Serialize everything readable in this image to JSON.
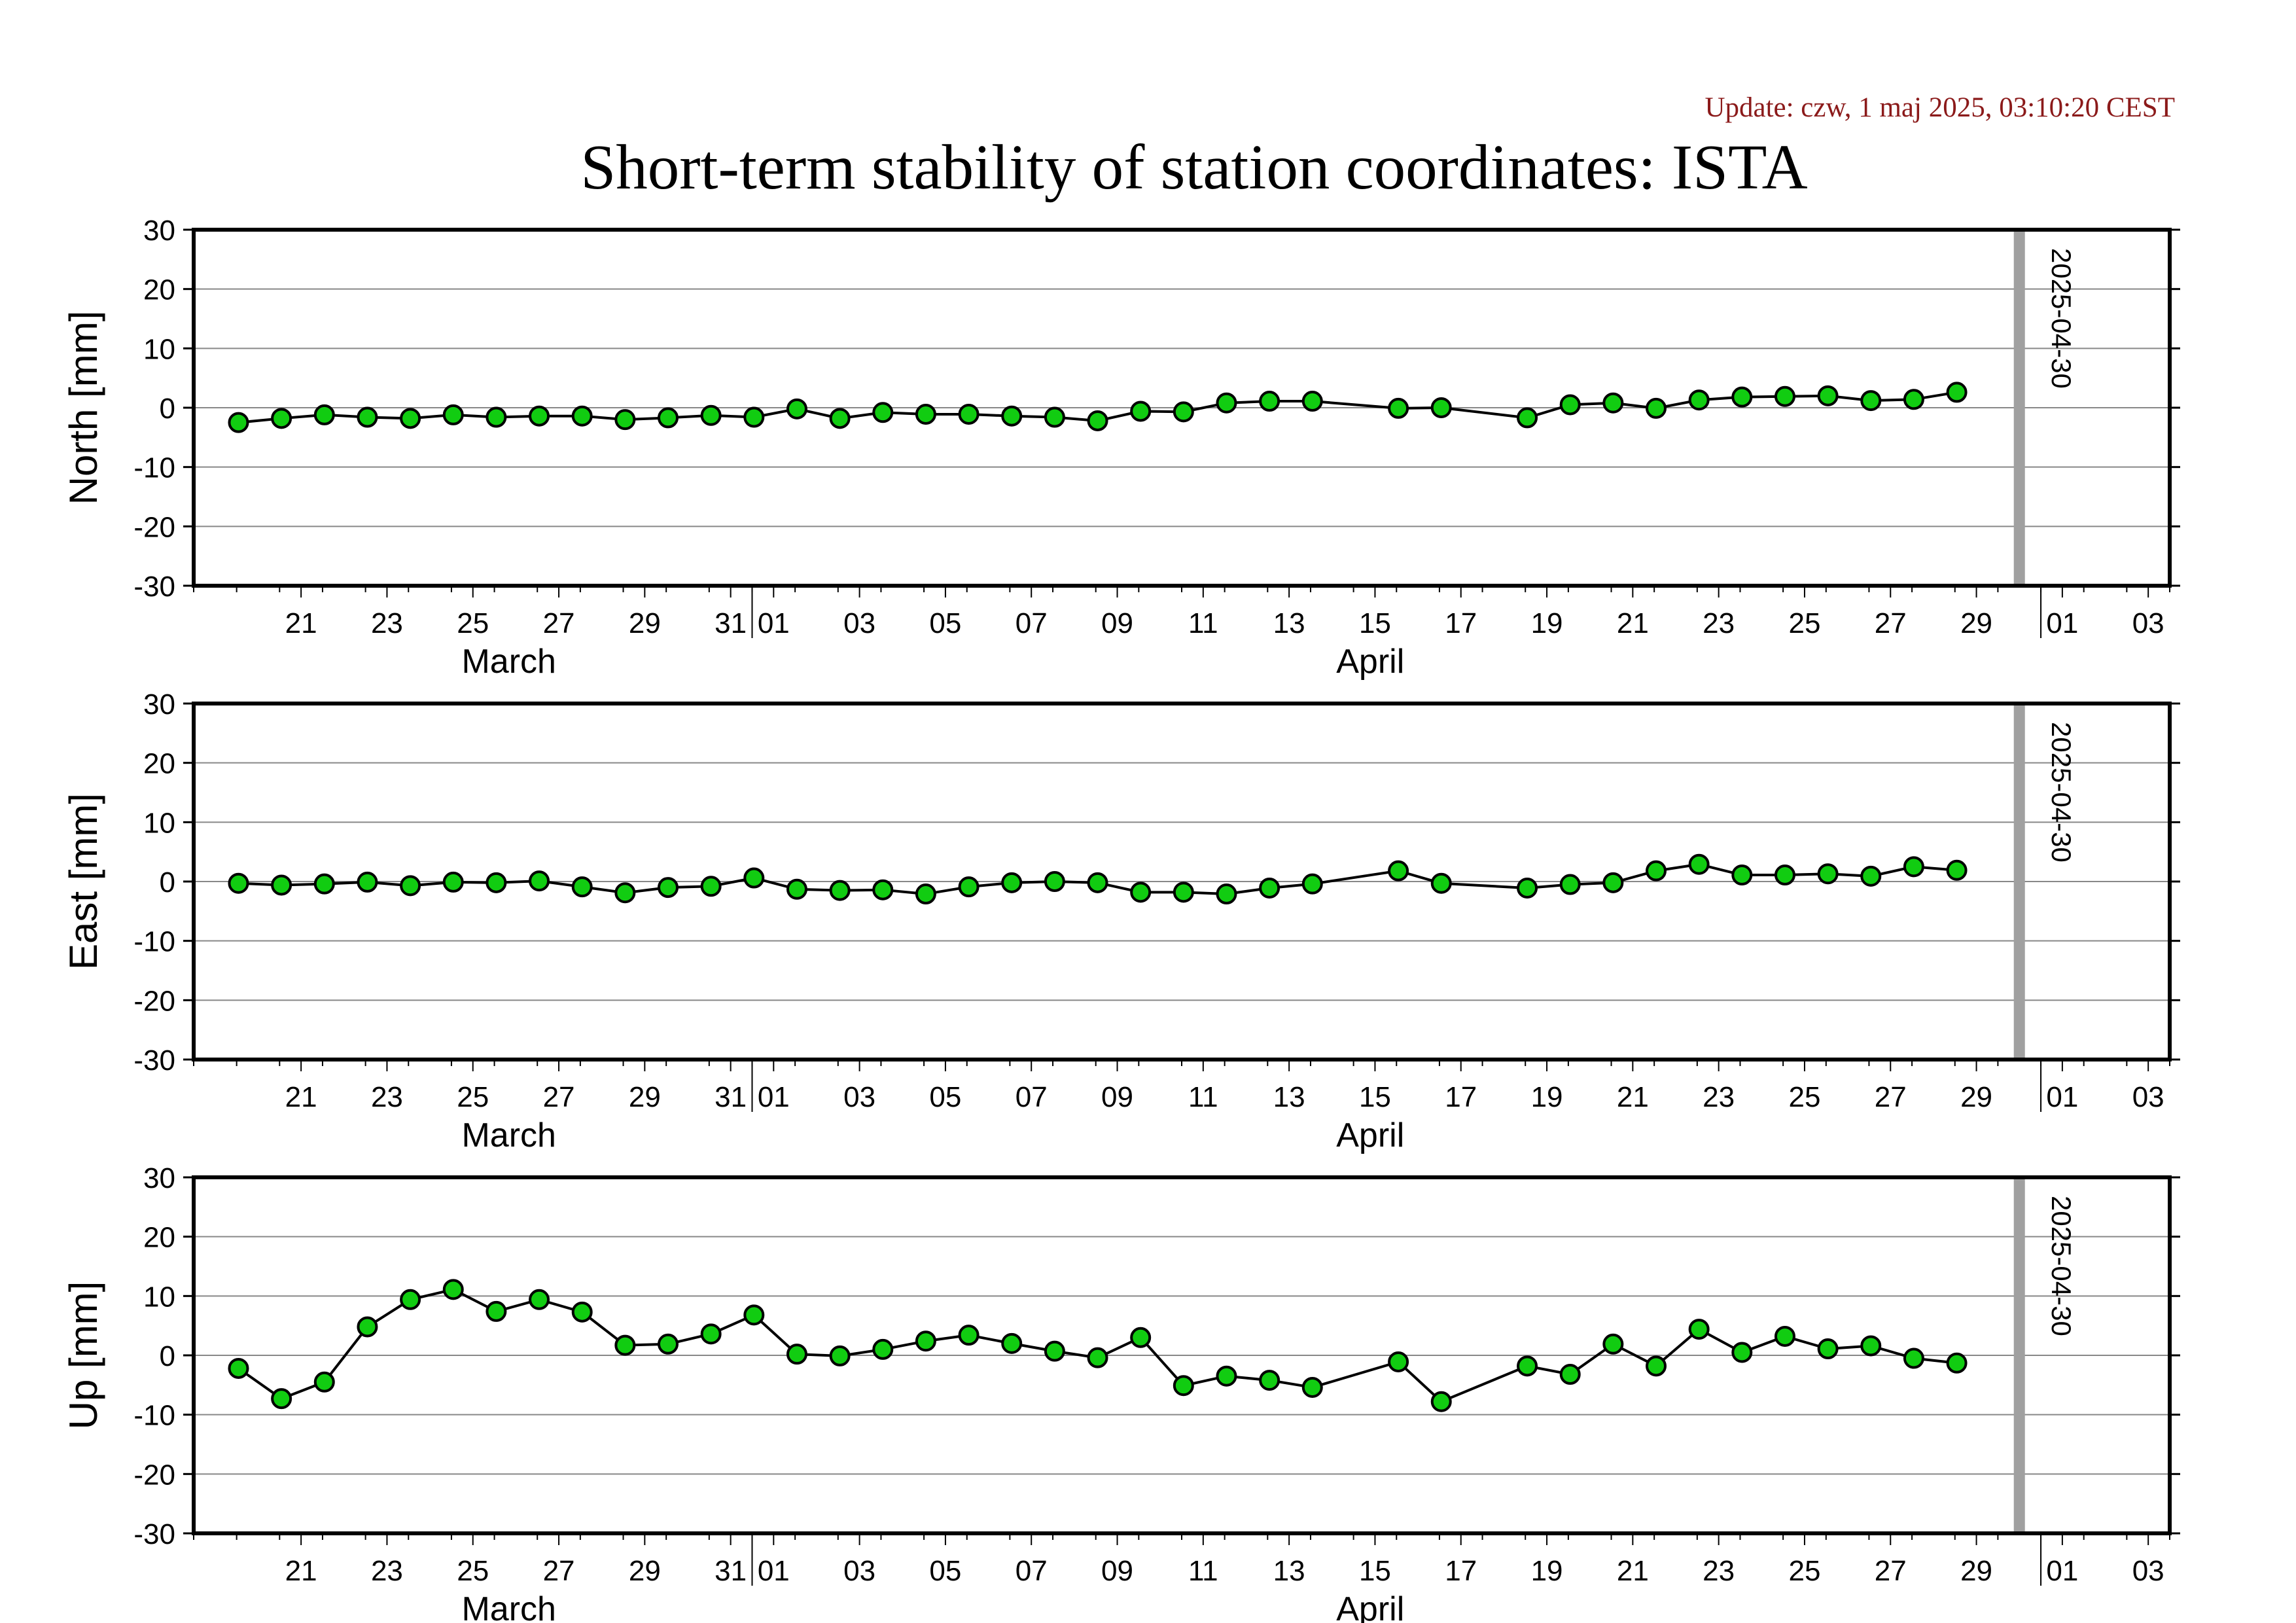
{
  "update_text": "Update: czw, 1 maj 2025, 03:10:20 CEST",
  "title": "Short-term stability of station coordinates: ISTA",
  "colors": {
    "marker_fill": "#11cc11",
    "line": "#000000",
    "grid": "#888888",
    "current_date_line": "#a0a0a0",
    "update_text": "#8b1a1a"
  },
  "chart_data": [
    {
      "type": "line",
      "ylabel": "North [mm]",
      "ylim": [
        -30,
        30
      ],
      "yticks": [
        30,
        20,
        10,
        0,
        -10,
        -20,
        -30
      ],
      "xlim": [
        "2025-03-19",
        "2025-05-04"
      ],
      "xticks": [
        "21",
        "23",
        "25",
        "27",
        "29",
        "31",
        "01",
        "03",
        "05",
        "07",
        "09",
        "11",
        "13",
        "15",
        "17",
        "19",
        "21",
        "23",
        "25",
        "27",
        "29",
        "01",
        "03"
      ],
      "month_labels": [
        "March",
        "April"
      ],
      "marker_line_label": "2025-04-30",
      "grid": true,
      "x": [
        "2025-03-20",
        "2025-03-21",
        "2025-03-22",
        "2025-03-23",
        "2025-03-24",
        "2025-03-25",
        "2025-03-26",
        "2025-03-27",
        "2025-03-28",
        "2025-03-29",
        "2025-03-30",
        "2025-03-31",
        "2025-04-01",
        "2025-04-02",
        "2025-04-03",
        "2025-04-04",
        "2025-04-05",
        "2025-04-06",
        "2025-04-07",
        "2025-04-08",
        "2025-04-09",
        "2025-04-10",
        "2025-04-11",
        "2025-04-12",
        "2025-04-13",
        "2025-04-14",
        "2025-04-16",
        "2025-04-17",
        "2025-04-19",
        "2025-04-20",
        "2025-04-21",
        "2025-04-22",
        "2025-04-23",
        "2025-04-24",
        "2025-04-25",
        "2025-04-26",
        "2025-04-27",
        "2025-04-28",
        "2025-04-29"
      ],
      "values": [
        -2.5,
        -1.8,
        -1.2,
        -1.6,
        -1.8,
        -1.2,
        -1.6,
        -1.4,
        -1.4,
        -2.0,
        -1.7,
        -1.3,
        -1.6,
        -0.2,
        -1.8,
        -0.8,
        -1.1,
        -1.1,
        -1.4,
        -1.6,
        -2.2,
        -0.6,
        -0.7,
        0.8,
        1.1,
        1.1,
        -0.1,
        0.0,
        -1.7,
        0.5,
        0.8,
        -0.1,
        1.3,
        1.8,
        1.9,
        2.0,
        1.2,
        1.4,
        2.6
      ]
    },
    {
      "type": "line",
      "ylabel": "East [mm]",
      "ylim": [
        -30,
        30
      ],
      "yticks": [
        30,
        20,
        10,
        0,
        -10,
        -20,
        -30
      ],
      "xlim": [
        "2025-03-19",
        "2025-05-04"
      ],
      "xticks": [
        "21",
        "23",
        "25",
        "27",
        "29",
        "31",
        "01",
        "03",
        "05",
        "07",
        "09",
        "11",
        "13",
        "15",
        "17",
        "19",
        "21",
        "23",
        "25",
        "27",
        "29",
        "01",
        "03"
      ],
      "month_labels": [
        "March",
        "April"
      ],
      "marker_line_label": "2025-04-30",
      "grid": true,
      "x": [
        "2025-03-20",
        "2025-03-21",
        "2025-03-22",
        "2025-03-23",
        "2025-03-24",
        "2025-03-25",
        "2025-03-26",
        "2025-03-27",
        "2025-03-28",
        "2025-03-29",
        "2025-03-30",
        "2025-03-31",
        "2025-04-01",
        "2025-04-02",
        "2025-04-03",
        "2025-04-04",
        "2025-04-05",
        "2025-04-06",
        "2025-04-07",
        "2025-04-08",
        "2025-04-09",
        "2025-04-10",
        "2025-04-11",
        "2025-04-12",
        "2025-04-13",
        "2025-04-14",
        "2025-04-16",
        "2025-04-17",
        "2025-04-19",
        "2025-04-20",
        "2025-04-21",
        "2025-04-22",
        "2025-04-23",
        "2025-04-24",
        "2025-04-25",
        "2025-04-26",
        "2025-04-27",
        "2025-04-28",
        "2025-04-29"
      ],
      "values": [
        -0.3,
        -0.6,
        -0.4,
        -0.1,
        -0.7,
        -0.1,
        -0.2,
        0.1,
        -0.9,
        -1.9,
        -1.0,
        -0.8,
        0.6,
        -1.3,
        -1.5,
        -1.4,
        -2.1,
        -0.9,
        -0.2,
        0.0,
        -0.2,
        -1.8,
        -1.8,
        -2.1,
        -1.1,
        -0.4,
        1.8,
        -0.3,
        -1.1,
        -0.5,
        -0.2,
        1.8,
        2.9,
        1.1,
        1.1,
        1.3,
        0.9,
        2.5,
        1.9
      ]
    },
    {
      "type": "line",
      "ylabel": "Up [mm]",
      "ylim": [
        -30,
        30
      ],
      "yticks": [
        30,
        20,
        10,
        0,
        -10,
        -20,
        -30
      ],
      "xlim": [
        "2025-03-19",
        "2025-05-04"
      ],
      "xticks": [
        "21",
        "23",
        "25",
        "27",
        "29",
        "31",
        "01",
        "03",
        "05",
        "07",
        "09",
        "11",
        "13",
        "15",
        "17",
        "19",
        "21",
        "23",
        "25",
        "27",
        "29",
        "01",
        "03"
      ],
      "month_labels": [
        "March",
        "April"
      ],
      "marker_line_label": "2025-04-30",
      "grid": true,
      "x": [
        "2025-03-20",
        "2025-03-21",
        "2025-03-22",
        "2025-03-23",
        "2025-03-24",
        "2025-03-25",
        "2025-03-26",
        "2025-03-27",
        "2025-03-28",
        "2025-03-29",
        "2025-03-30",
        "2025-03-31",
        "2025-04-01",
        "2025-04-02",
        "2025-04-03",
        "2025-04-04",
        "2025-04-05",
        "2025-04-06",
        "2025-04-07",
        "2025-04-08",
        "2025-04-09",
        "2025-04-10",
        "2025-04-11",
        "2025-04-12",
        "2025-04-13",
        "2025-04-14",
        "2025-04-16",
        "2025-04-17",
        "2025-04-19",
        "2025-04-20",
        "2025-04-21",
        "2025-04-22",
        "2025-04-23",
        "2025-04-24",
        "2025-04-25",
        "2025-04-26",
        "2025-04-27",
        "2025-04-28",
        "2025-04-29"
      ],
      "values": [
        -2.2,
        -7.3,
        -4.5,
        4.8,
        9.4,
        11.1,
        7.4,
        9.4,
        7.3,
        1.7,
        1.9,
        3.6,
        6.8,
        0.2,
        -0.1,
        1.0,
        2.4,
        3.4,
        2.0,
        0.7,
        -0.4,
        3.0,
        -5.1,
        -3.5,
        -4.2,
        -5.4,
        -1.1,
        -7.8,
        -1.8,
        -3.2,
        1.9,
        -1.8,
        4.4,
        0.5,
        3.2,
        1.1,
        1.6,
        -0.5,
        -1.3
      ]
    }
  ]
}
